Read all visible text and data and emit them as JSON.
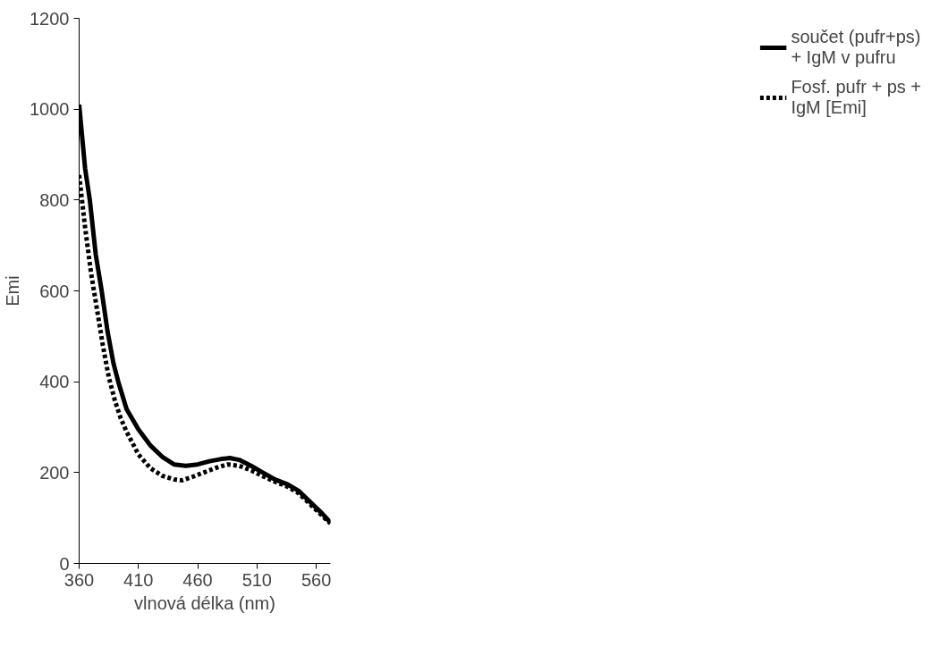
{
  "chart_data": {
    "type": "line",
    "xlabel": "vlnová délka (nm)",
    "ylabel": "Emi",
    "xlim": [
      360,
      572
    ],
    "ylim": [
      0,
      1200
    ],
    "xticks": [
      360,
      410,
      460,
      510,
      560
    ],
    "yticks": [
      0,
      200,
      400,
      600,
      800,
      1000,
      1200
    ],
    "grid": false,
    "legend": "right",
    "marker": "none",
    "series": [
      {
        "name": "součet (pufr+ps) + IgM v pufru",
        "color": "#000000",
        "line_style": "solid",
        "x": [
          360,
          365,
          369,
          374,
          379,
          384,
          389,
          393,
          400,
          410,
          420,
          430,
          440,
          450,
          460,
          470,
          480,
          487,
          495,
          505,
          515,
          525,
          535,
          545,
          555,
          565,
          572
        ],
        "values": [
          1010,
          870,
          800,
          680,
          600,
          510,
          440,
          400,
          340,
          295,
          260,
          235,
          218,
          215,
          218,
          225,
          230,
          232,
          228,
          215,
          200,
          185,
          175,
          160,
          135,
          110,
          90
        ]
      },
      {
        "name": "Fosf. pufr + ps + IgM [Emi]",
        "color": "#000000",
        "line_style": "dotted",
        "x": [
          360,
          365,
          370,
          375,
          380,
          385,
          390,
          395,
          400,
          410,
          420,
          430,
          440,
          447,
          455,
          465,
          475,
          485,
          495,
          505,
          515,
          525,
          535,
          545,
          555,
          565,
          572
        ],
        "values": [
          855,
          740,
          640,
          560,
          480,
          410,
          360,
          320,
          290,
          240,
          210,
          193,
          185,
          183,
          190,
          200,
          210,
          218,
          215,
          205,
          192,
          180,
          170,
          155,
          130,
          105,
          88
        ]
      }
    ]
  }
}
